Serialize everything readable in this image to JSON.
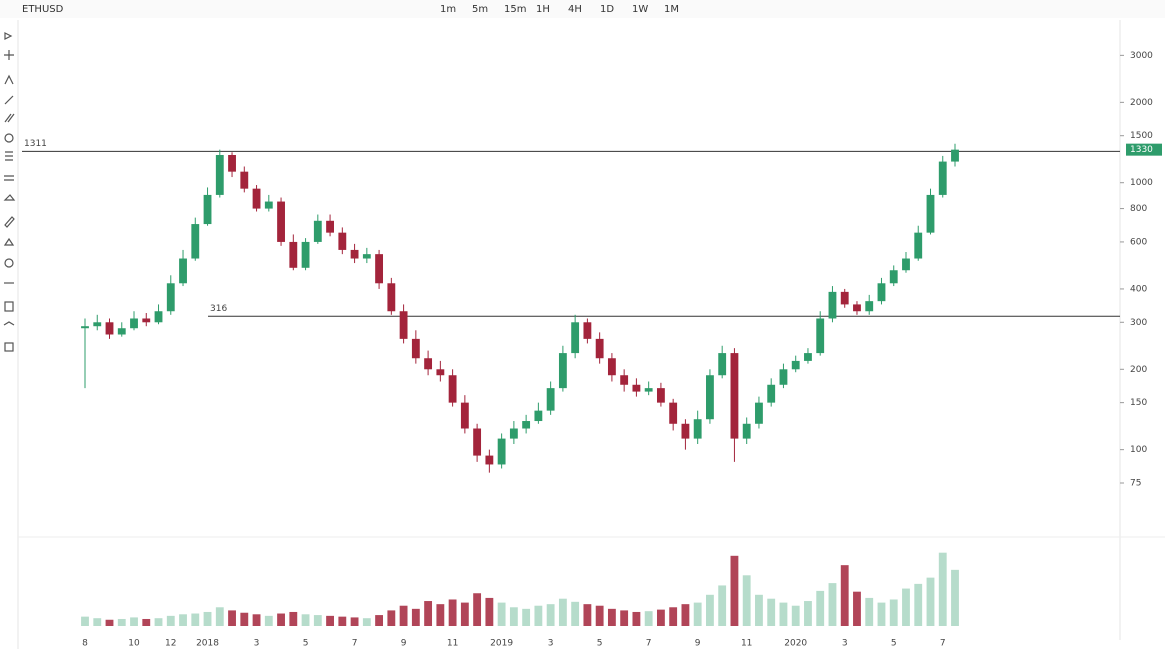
{
  "toolbar": {
    "symbol": "ETHUSD",
    "timeframes": [
      "1m",
      "5m",
      "15m",
      "1H",
      "4H",
      "1D",
      "1W",
      "1M"
    ]
  },
  "chart_data": {
    "type": "candlestick",
    "categories": [
      "8",
      null,
      null,
      null,
      "10",
      null,
      null,
      "12",
      null,
      null,
      "2018",
      null,
      null,
      null,
      "3",
      null,
      null,
      null,
      "5",
      null,
      null,
      null,
      "7",
      null,
      null,
      null,
      "9",
      null,
      null,
      null,
      "11",
      null,
      null,
      null,
      "2019",
      null,
      null,
      null,
      "3",
      null,
      null,
      null,
      "5",
      null,
      null,
      null,
      "7",
      null,
      null,
      null,
      "9",
      null,
      null,
      null,
      "11",
      null,
      null,
      null,
      "2020",
      null,
      null,
      null,
      "3",
      null,
      null,
      null,
      "5",
      null,
      null,
      null,
      "7",
      null
    ],
    "open": [
      285,
      290,
      300,
      270,
      285,
      310,
      300,
      330,
      420,
      520,
      700,
      900,
      1270,
      1100,
      950,
      800,
      850,
      600,
      480,
      600,
      720,
      650,
      560,
      520,
      540,
      420,
      330,
      260,
      220,
      200,
      190,
      150,
      120,
      95,
      88,
      110,
      120,
      128,
      140,
      170,
      230,
      300,
      260,
      220,
      190,
      175,
      165,
      170,
      150,
      125,
      110,
      130,
      190,
      230,
      110,
      125,
      150,
      175,
      200,
      215,
      230,
      310,
      390,
      350,
      330,
      360,
      420,
      470,
      520,
      650,
      900,
      1200
    ],
    "high": [
      310,
      320,
      310,
      300,
      330,
      325,
      350,
      450,
      560,
      740,
      960,
      1330,
      1300,
      1150,
      980,
      900,
      880,
      640,
      620,
      760,
      760,
      680,
      590,
      570,
      560,
      440,
      350,
      280,
      235,
      215,
      200,
      160,
      125,
      100,
      115,
      128,
      135,
      150,
      180,
      245,
      320,
      310,
      275,
      230,
      200,
      185,
      180,
      178,
      155,
      130,
      140,
      200,
      245,
      240,
      132,
      158,
      185,
      210,
      225,
      240,
      330,
      410,
      400,
      360,
      380,
      440,
      490,
      550,
      690,
      950,
      1260,
      1400
    ],
    "low": [
      170,
      280,
      260,
      265,
      280,
      290,
      295,
      320,
      410,
      510,
      690,
      880,
      1050,
      920,
      780,
      780,
      580,
      470,
      470,
      590,
      630,
      540,
      500,
      500,
      400,
      320,
      250,
      210,
      190,
      180,
      145,
      115,
      90,
      82,
      85,
      105,
      115,
      125,
      135,
      165,
      220,
      250,
      210,
      180,
      165,
      158,
      160,
      145,
      118,
      100,
      105,
      125,
      185,
      90,
      105,
      120,
      145,
      170,
      195,
      210,
      225,
      300,
      340,
      320,
      320,
      350,
      410,
      460,
      510,
      640,
      880,
      1150
    ],
    "close": [
      290,
      300,
      270,
      285,
      310,
      300,
      330,
      420,
      520,
      700,
      900,
      1270,
      1100,
      950,
      800,
      850,
      600,
      480,
      600,
      720,
      650,
      560,
      520,
      540,
      420,
      330,
      260,
      220,
      200,
      190,
      150,
      120,
      95,
      88,
      110,
      120,
      128,
      140,
      170,
      230,
      300,
      260,
      220,
      190,
      175,
      165,
      170,
      150,
      125,
      110,
      130,
      190,
      230,
      110,
      125,
      150,
      175,
      200,
      215,
      230,
      310,
      390,
      350,
      330,
      360,
      420,
      470,
      520,
      650,
      900,
      1200,
      1330
    ],
    "volume": [
      1.2,
      1.0,
      0.8,
      0.9,
      1.1,
      0.9,
      1.0,
      1.3,
      1.5,
      1.6,
      1.8,
      2.4,
      2.0,
      1.7,
      1.5,
      1.3,
      1.6,
      1.8,
      1.5,
      1.4,
      1.3,
      1.2,
      1.1,
      1.0,
      1.4,
      2.0,
      2.6,
      2.2,
      3.2,
      2.8,
      3.4,
      3.0,
      4.2,
      3.6,
      3.0,
      2.4,
      2.2,
      2.6,
      2.8,
      3.5,
      3.1,
      2.8,
      2.6,
      2.2,
      2.0,
      1.8,
      1.9,
      2.1,
      2.4,
      2.8,
      3.0,
      4.0,
      5.2,
      9.0,
      6.5,
      4.0,
      3.5,
      3.0,
      2.6,
      3.2,
      4.5,
      5.5,
      7.8,
      4.4,
      3.6,
      3.0,
      3.4,
      4.8,
      5.4,
      6.2,
      9.4,
      7.2
    ],
    "up_color": "#2e9c6b",
    "down_color": "#a3243b",
    "log_scale": true,
    "ylim": [
      50,
      4000
    ],
    "yticks": [
      75,
      100,
      150,
      200,
      300,
      400,
      600,
      800,
      1000,
      1500,
      2000,
      3000
    ],
    "volume_ylim": [
      0,
      10
    ],
    "hlines": [
      1311,
      316
    ]
  }
}
